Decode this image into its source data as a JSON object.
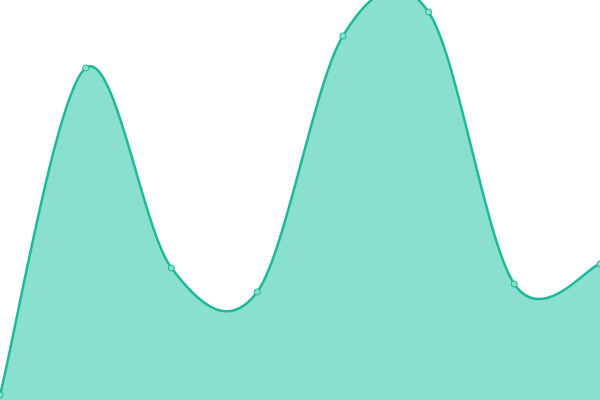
{
  "chart_data": {
    "type": "area",
    "categories": [
      null,
      null,
      null,
      null,
      null,
      null,
      null,
      null
    ],
    "values": [
      1.25,
      83,
      33,
      27,
      91,
      97,
      29,
      34
    ],
    "ylim": [
      0,
      100
    ],
    "color": "#1fb899",
    "fill": "#8ae0cf"
  }
}
